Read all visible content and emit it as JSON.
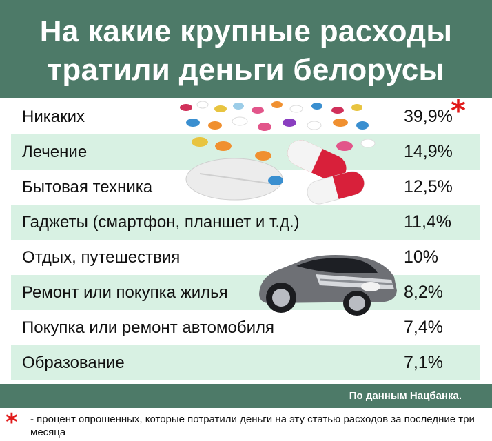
{
  "header": {
    "title_line1": "На какие крупные расходы",
    "title_line2": "тратили деньги белорусы",
    "background": "#4d7a68"
  },
  "chart_data": {
    "type": "table",
    "categories": [
      "Никаких",
      "Лечение",
      "Бытовая техника",
      "Гаджеты (смартфон, планшет и т.д.)",
      "Отдых, путешествия",
      "Ремонт или покупка жилья",
      "Покупка или ремонт автомобиля",
      "Образование"
    ],
    "values": [
      39.9,
      14.9,
      12.5,
      11.4,
      10,
      8.2,
      7.4,
      7.1
    ],
    "value_labels": [
      "39,9%",
      "14,9%",
      "12,5%",
      "11,4%",
      "10%",
      "8,2%",
      "7,4%",
      "7,1%"
    ],
    "title": "На какие крупные расходы тратили деньги белорусы",
    "row_colors": [
      "#ffffff",
      "#d8f1e3"
    ]
  },
  "footer": {
    "asterisk": "*",
    "source": "По данным Нацбанка.",
    "note": "- процент опрошенных, которые потратили деньги на эту статью расходов за последние три месяца"
  },
  "illustrations": {
    "pills_icon": "pills-icon",
    "car_icon": "sports-car-icon"
  },
  "colors": {
    "accent_red": "#e11a1a",
    "row_alt": "#d8f1e3"
  }
}
